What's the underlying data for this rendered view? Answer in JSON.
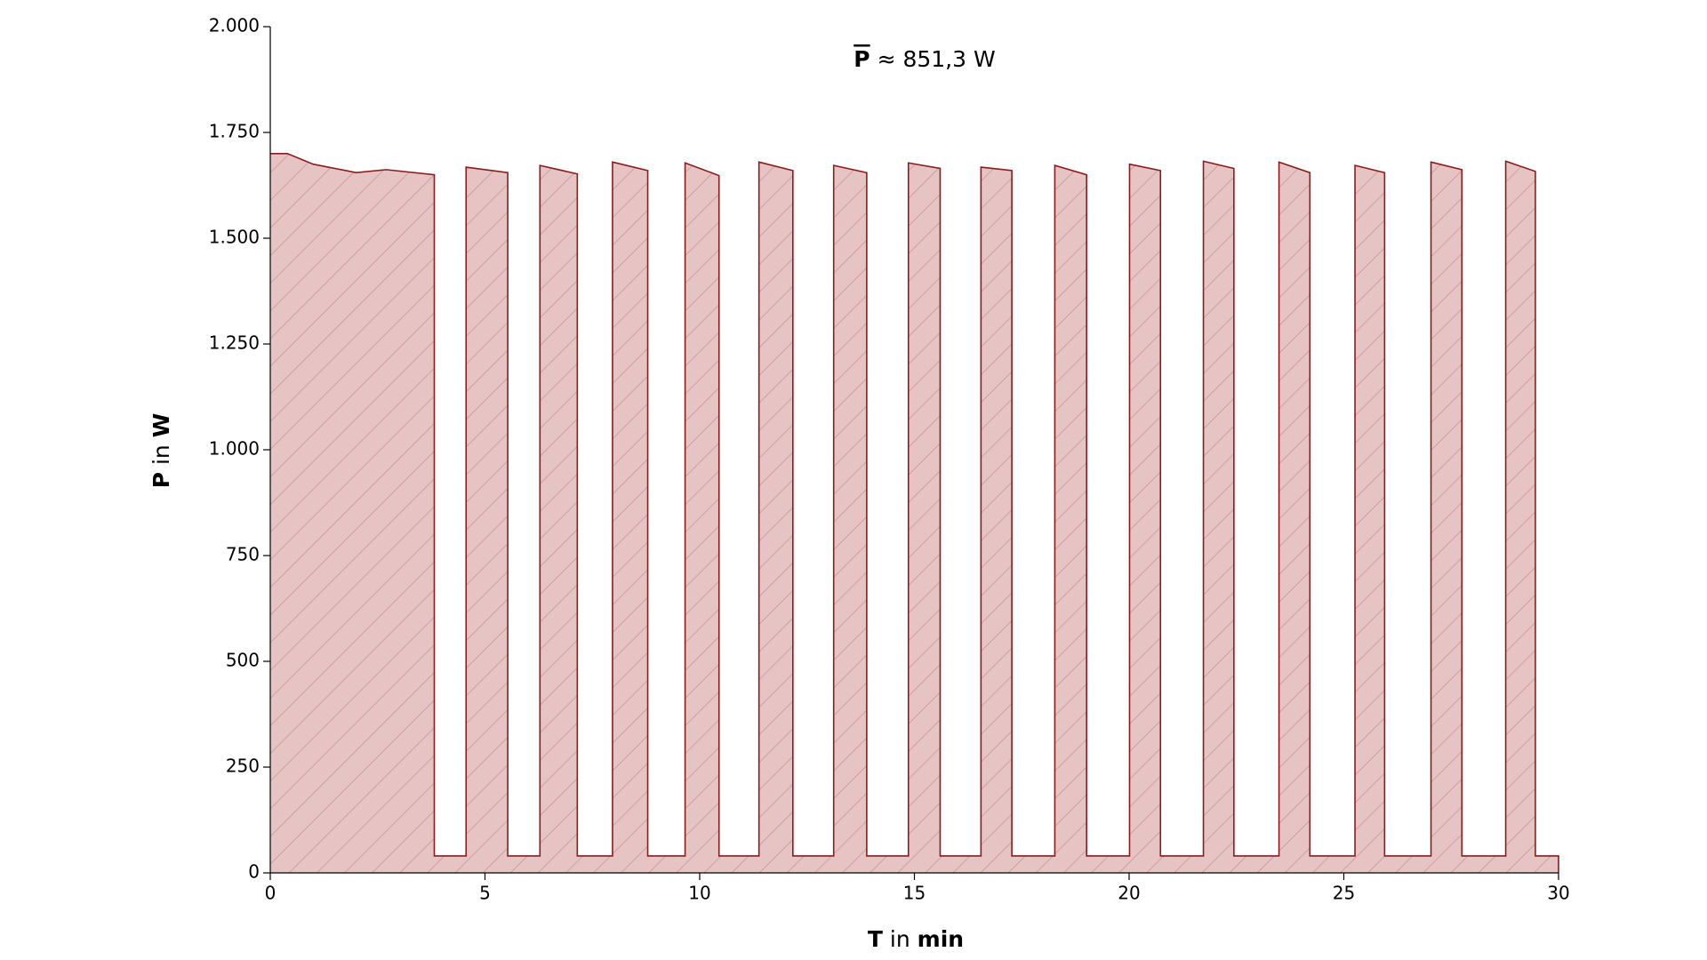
{
  "chart_data": {
    "type": "area",
    "annotation_symbol": "P",
    "annotation_text": "≈ 851,3 W",
    "x_label": [
      "T",
      "in",
      "min"
    ],
    "y_label": [
      "P",
      "in",
      "W"
    ],
    "x": [
      0,
      0.4,
      1,
      2,
      2.7,
      3.82,
      3.82,
      4.56,
      4.56,
      5.53,
      5.53,
      6.28,
      6.28,
      7.15,
      7.15,
      7.97,
      7.97,
      8.79,
      8.79,
      9.66,
      9.66,
      10.45,
      10.45,
      11.38,
      11.38,
      12.17,
      12.17,
      13.12,
      13.12,
      13.89,
      13.89,
      14.86,
      14.86,
      15.6,
      15.6,
      16.55,
      16.55,
      17.27,
      17.27,
      18.27,
      18.27,
      19.01,
      19.01,
      20.01,
      20.01,
      20.73,
      20.73,
      21.73,
      21.73,
      22.44,
      22.44,
      23.49,
      23.49,
      24.21,
      24.21,
      25.26,
      25.26,
      25.95,
      25.95,
      27.03,
      27.03,
      27.75,
      27.75,
      28.77,
      28.77,
      29.46,
      29.46,
      30,
      30
    ],
    "values": [
      1700,
      1700,
      1675,
      1655,
      1662,
      1650,
      40,
      40,
      1668,
      1655,
      40,
      40,
      1672,
      1652,
      40,
      40,
      1680,
      1660,
      40,
      40,
      1678,
      1648,
      40,
      40,
      1680,
      1660,
      40,
      40,
      1672,
      1655,
      40,
      40,
      1678,
      1665,
      40,
      40,
      1668,
      1660,
      40,
      40,
      1672,
      1650,
      40,
      40,
      1675,
      1660,
      40,
      40,
      1682,
      1665,
      40,
      40,
      1680,
      1655,
      40,
      40,
      1672,
      1655,
      40,
      40,
      1680,
      1662,
      40,
      40,
      1682,
      1658,
      40,
      40,
      0
    ],
    "line_color": "#8b1c1c",
    "fill_color": "#e6c4c4",
    "hatch_color": "#c98a8a",
    "xlim": [
      0,
      30
    ],
    "xticks": [
      0,
      5,
      10,
      15,
      20,
      25,
      30
    ],
    "ylim": [
      0,
      2000
    ],
    "yticks": [
      0,
      250,
      500,
      750,
      {
        "value": 1000,
        "label": "1.000"
      },
      {
        "value": 1250,
        "label": "1.250"
      },
      {
        "value": 1500,
        "label": "1.500"
      },
      {
        "value": 1750,
        "label": "1.750"
      },
      {
        "value": 2000,
        "label": "2.000"
      }
    ],
    "grid": false
  }
}
